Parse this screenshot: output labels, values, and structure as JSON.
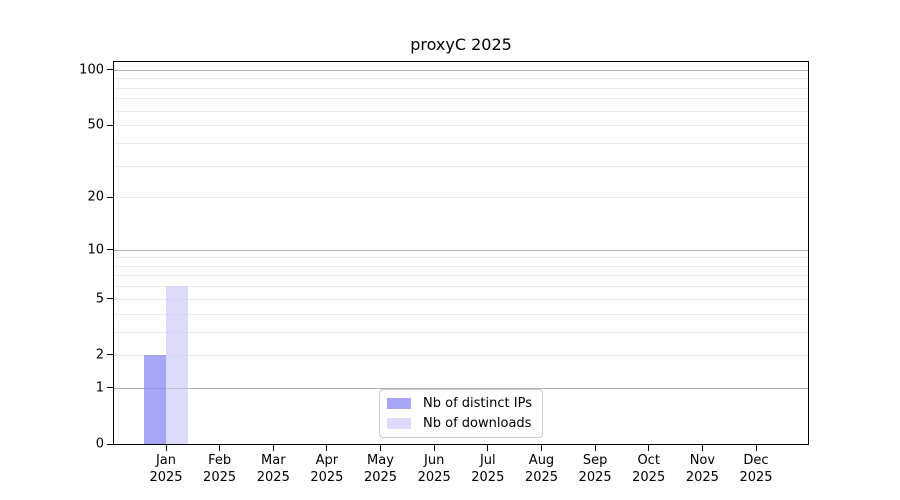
{
  "chart_data": {
    "type": "bar",
    "title": "proxyC 2025",
    "categories": [
      "Jan",
      "Feb",
      "Mar",
      "Apr",
      "May",
      "Jun",
      "Jul",
      "Aug",
      "Sep",
      "Oct",
      "Nov",
      "Dec"
    ],
    "x_tick_year_line": "2025",
    "series": [
      {
        "name": "Nb of distinct IPs",
        "color": "rgba(132,132,240,0.72)",
        "color_over_white": "#a9a9f4",
        "values": [
          2,
          0,
          0,
          0,
          0,
          0,
          0,
          0,
          0,
          0,
          0,
          0
        ]
      },
      {
        "name": "Nb of downloads",
        "color": "rgba(198,198,247,0.62)",
        "color_over_white": "#dcdcfa",
        "values": [
          6,
          0,
          0,
          0,
          0,
          0,
          0,
          0,
          0,
          0,
          0,
          0
        ]
      }
    ],
    "xlabel": "",
    "ylabel": "",
    "y_scale": "log1p (position proportional to log10(1+value), linear 0-1 segment)",
    "y_ticks": [
      0,
      1,
      2,
      5,
      10,
      20,
      50,
      100
    ],
    "y_tick_labels": [
      "0",
      "1",
      "2",
      "5",
      "10",
      "20",
      "50",
      "100"
    ],
    "y_major_gridlines": [
      1,
      10,
      100
    ],
    "y_minor_gridlines": [
      2,
      3,
      4,
      5,
      6,
      7,
      8,
      9,
      20,
      30,
      40,
      50,
      60,
      70,
      80,
      90
    ],
    "ylim": [
      0,
      110
    ],
    "grid": "horizontal only",
    "legend_position": "lower center, inside plot",
    "colors": {
      "background": "#ffffff",
      "axis": "#000000",
      "text": "#000000",
      "major_grid": "#b2b2b2",
      "minor_grid": "#ececec",
      "legend_border": "#cccccc"
    }
  }
}
